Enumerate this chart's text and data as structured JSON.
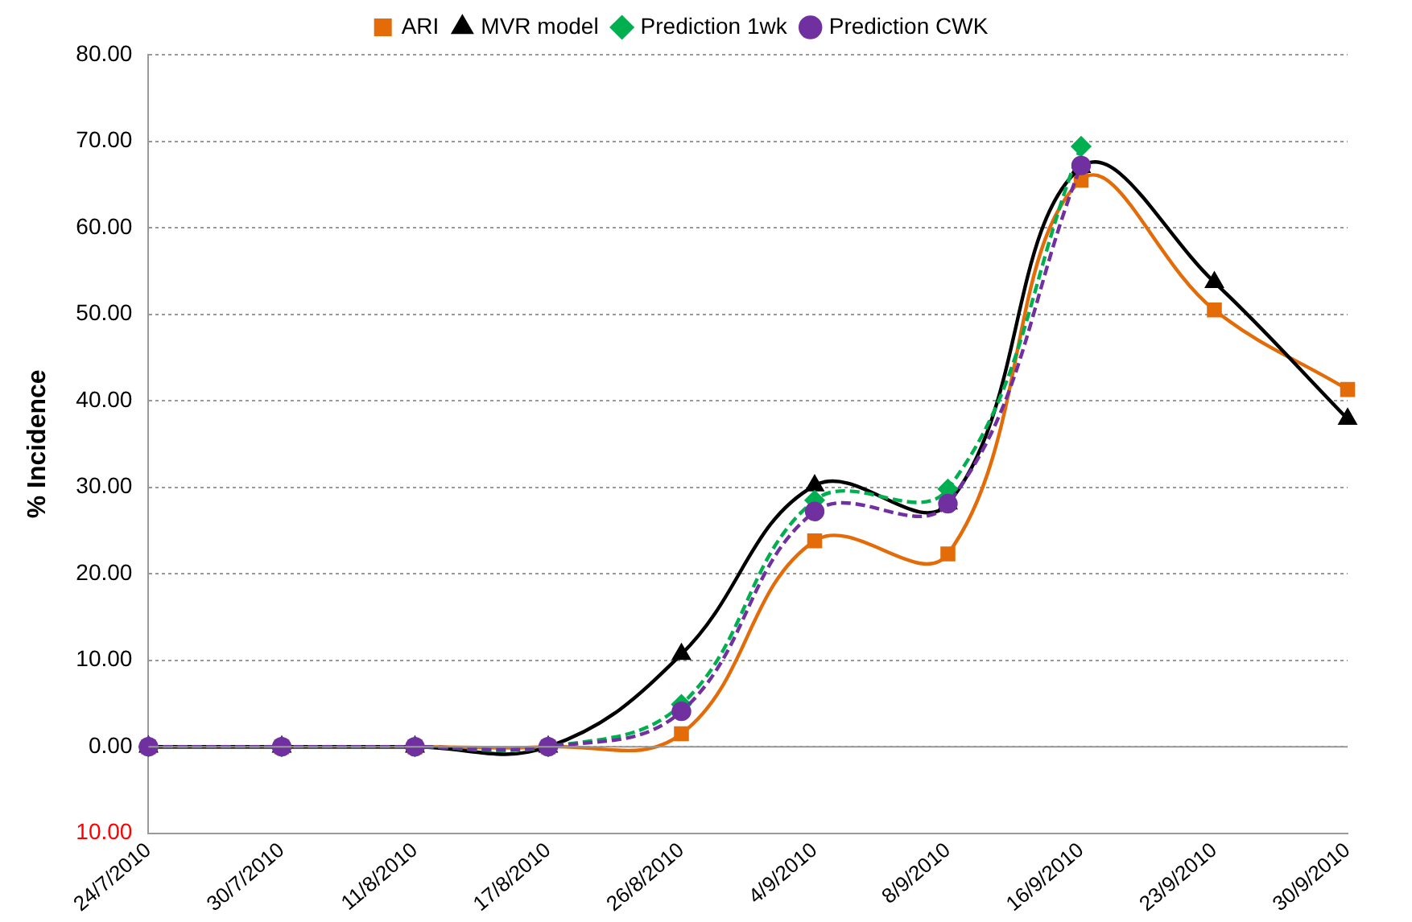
{
  "chart_data": {
    "type": "line",
    "ylabel": "% Incidence",
    "categories": [
      "24/7/2010",
      "30/7/2010",
      "11/8/2010",
      "17/8/2010",
      "26/8/2010",
      "4/9/2010",
      "8/9/2010",
      "16/9/2010",
      "23/9/2010",
      "30/9/2010"
    ],
    "series": [
      {
        "name": "ARI",
        "color": "#e36c09",
        "marker": "square",
        "line_style": "solid",
        "values": [
          0,
          0,
          0,
          0,
          1.5,
          23.8,
          22.3,
          65.5,
          50.5,
          41.3
        ]
      },
      {
        "name": "MVR model",
        "color": "#000000",
        "marker": "triangle",
        "line_style": "solid",
        "values": [
          0,
          0,
          0,
          0,
          10.7,
          30.2,
          28.1,
          67,
          53.7,
          37.9
        ]
      },
      {
        "name": "Prediction 1wk",
        "color": "#00b050",
        "marker": "diamond",
        "line_style": "dashed",
        "values": [
          0,
          0,
          0,
          0,
          4.9,
          28.5,
          29.8,
          69.4,
          null,
          null
        ]
      },
      {
        "name": "Prediction CWK",
        "color": "#7030a0",
        "marker": "circle",
        "line_style": "dashed",
        "values": [
          0,
          0,
          0,
          0,
          4.1,
          27.2,
          28.1,
          67.2,
          null,
          null
        ]
      }
    ],
    "ylim": [
      -10,
      80
    ],
    "yticks": [
      {
        "value": -10,
        "label": "10.00"
      },
      {
        "value": 0,
        "label": "0.00"
      },
      {
        "value": 10,
        "label": "10.00"
      },
      {
        "value": 20,
        "label": "20.00"
      },
      {
        "value": 30,
        "label": "30.00"
      },
      {
        "value": 40,
        "label": "40.00"
      },
      {
        "value": 50,
        "label": "50.00"
      },
      {
        "value": 60,
        "label": "60.00"
      },
      {
        "value": 70,
        "label": "70.00"
      },
      {
        "value": 80,
        "label": "80.00"
      }
    ],
    "grid": "y",
    "legend": "top"
  }
}
